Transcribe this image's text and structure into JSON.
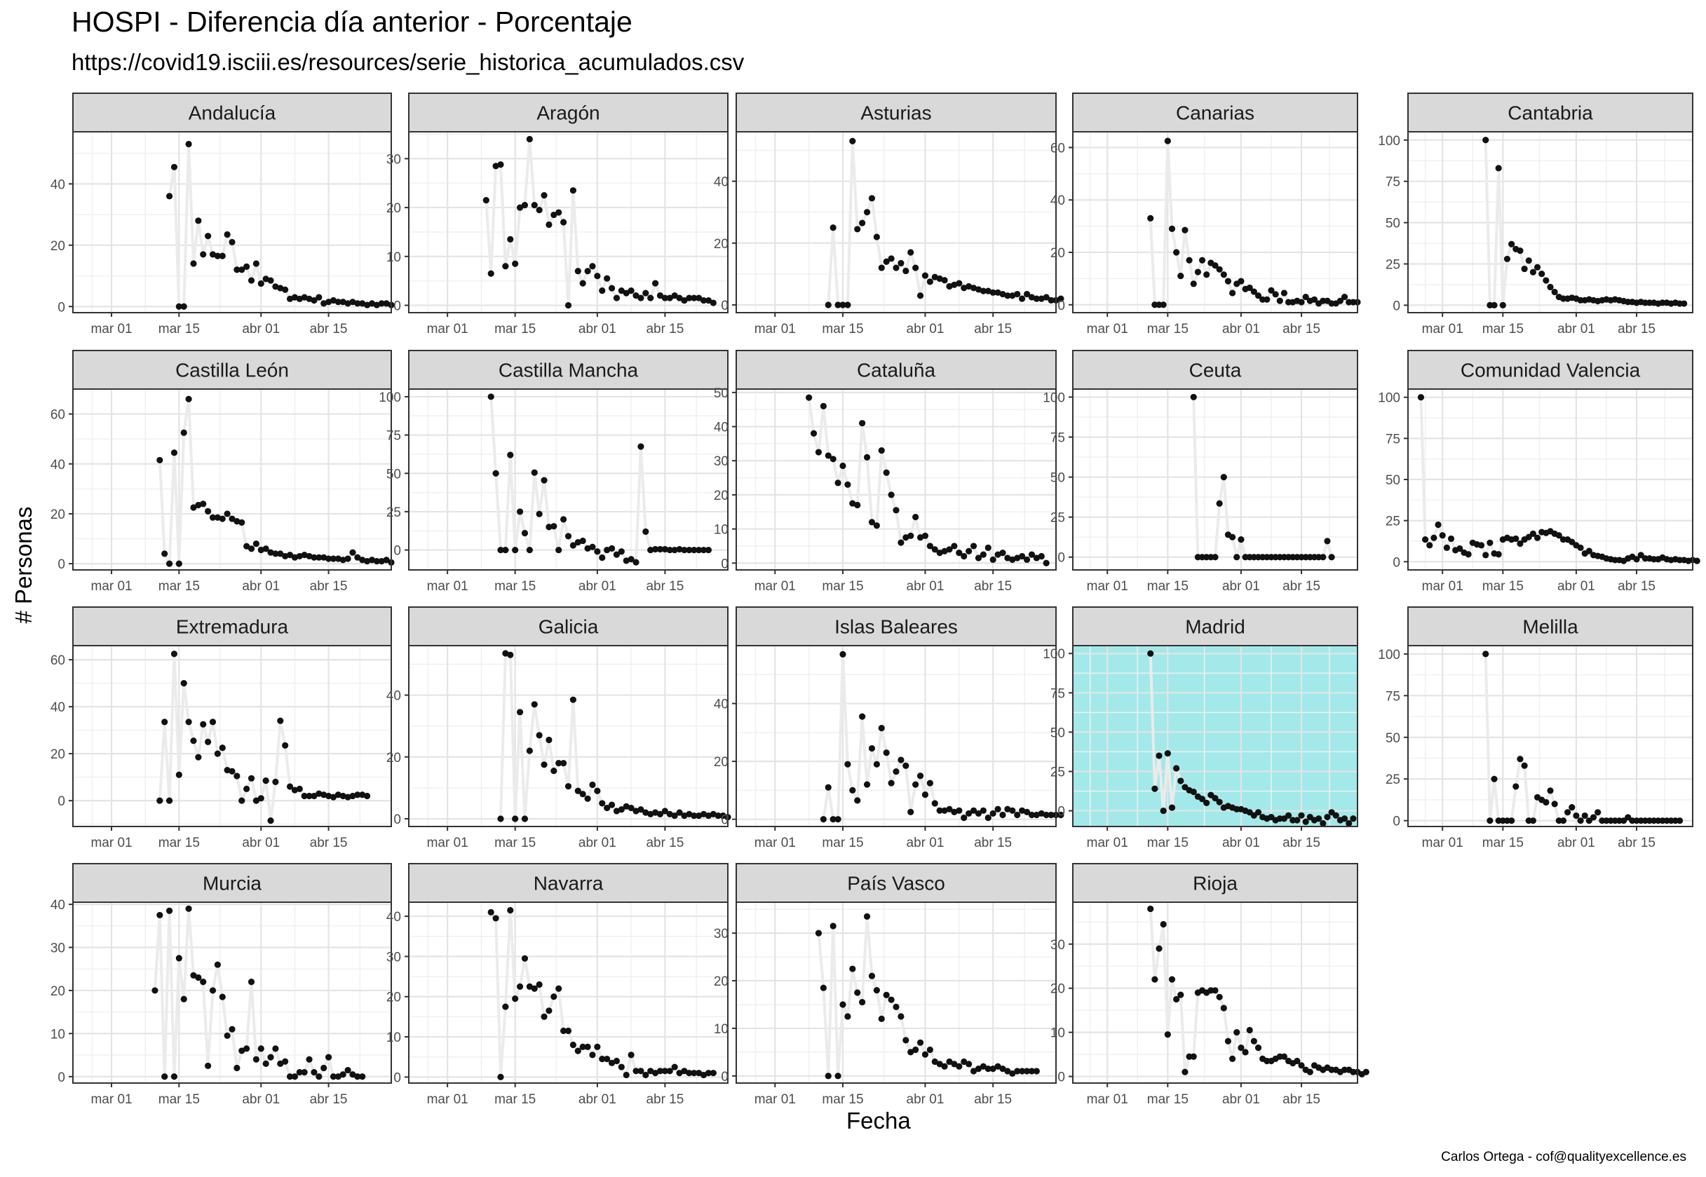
{
  "title": "HOSPI - Diferencia día anterior - Porcentaje",
  "subtitle": "https://covid19.isciii.es/resources/serie_historica_acumulados.csv",
  "caption": "Carlos Ortega - cof@qualityexcellence.es",
  "chart_data": {
    "type": "scatter",
    "xlabel": "Fecha",
    "ylabel": "# Personas",
    "x_axis": {
      "start": "2020-02-22",
      "end": "2020-04-28",
      "ticks": [
        {
          "date": "2020-03-01",
          "label": "mar 01"
        },
        {
          "date": "2020-03-15",
          "label": "mar 15"
        },
        {
          "date": "2020-04-01",
          "label": "abr 01"
        },
        {
          "date": "2020-04-15",
          "label": "abr 15"
        }
      ]
    },
    "highlight_color": "#a3e9e9",
    "line_color": "#ebebeb",
    "point_color": "#111111",
    "panels": [
      {
        "name": "Andalucía",
        "ylim": [
          -2,
          57
        ],
        "yticks": [
          0,
          20,
          40
        ],
        "highlight": false,
        "start": "2020-03-13",
        "values": [
          36,
          45.5,
          0,
          0,
          53,
          14,
          28,
          17,
          23,
          17,
          16.5,
          16.5,
          23.5,
          21,
          12,
          12,
          13,
          8.5,
          14,
          7.5,
          9,
          8.5,
          6.5,
          6,
          5.5,
          2.5,
          3,
          2.5,
          3,
          2.5,
          2,
          3,
          1,
          1.5,
          2,
          1.5,
          1.5,
          1,
          1.5,
          1,
          1,
          0.5,
          1,
          0.5,
          1,
          1,
          0.5
        ]
      },
      {
        "name": "Aragón",
        "ylim": [
          -1.5,
          35.5
        ],
        "yticks": [
          0,
          10,
          20,
          30
        ],
        "highlight": false,
        "start": "2020-03-09",
        "values": [
          21.5,
          6.5,
          28.5,
          28.8,
          8,
          13.5,
          8.5,
          20,
          20.5,
          34,
          20.5,
          19.5,
          22.5,
          16.5,
          18.5,
          19,
          17,
          0,
          23.5,
          7,
          4.5,
          7,
          8,
          6,
          3,
          5.5,
          3.5,
          1.5,
          3,
          2.5,
          3,
          2,
          1.5,
          2.5,
          1.5,
          4.5,
          2,
          1.5,
          1.5,
          2,
          1.5,
          1,
          1.5,
          1.5,
          1.5,
          1,
          1,
          0.5
        ]
      },
      {
        "name": "Asturias",
        "ylim": [
          -2.5,
          56
        ],
        "yticks": [
          0,
          20,
          40
        ],
        "highlight": false,
        "start": "2020-03-12",
        "values": [
          0,
          25,
          0,
          0,
          0,
          53,
          24.5,
          26.5,
          30,
          34.5,
          22,
          12,
          14,
          15,
          12,
          13.5,
          11,
          17,
          12,
          3,
          9.5,
          7.5,
          9,
          8.5,
          8,
          6,
          6.5,
          7,
          5.5,
          6,
          5.5,
          5,
          4.5,
          4.5,
          4,
          4,
          3.5,
          3,
          3,
          3.5,
          2,
          3.5,
          2.5,
          2,
          2,
          2.5,
          1.5,
          1.5,
          2
        ]
      },
      {
        "name": "Canarias",
        "ylim": [
          -3,
          66
        ],
        "yticks": [
          0,
          20,
          40,
          60
        ],
        "highlight": false,
        "start": "2020-03-11",
        "values": [
          33,
          0,
          0,
          0,
          62.5,
          29,
          20,
          11,
          28.5,
          17,
          8,
          12.5,
          17,
          11.5,
          16,
          15,
          13.5,
          11.5,
          9,
          4.5,
          8,
          9,
          6,
          6.5,
          5,
          3.5,
          2,
          2,
          5.5,
          4,
          1.5,
          4.5,
          1,
          1,
          1.5,
          1,
          3,
          1.5,
          2,
          0.5,
          1.5,
          1.5,
          0.5,
          0.5,
          1.5,
          3,
          1,
          1,
          1
        ]
      },
      {
        "name": "Cantabria",
        "ylim": [
          -4.5,
          105
        ],
        "yticks": [
          0,
          25,
          50,
          75,
          100
        ],
        "highlight": false,
        "start": "2020-03-11",
        "values": [
          100,
          0,
          0,
          83,
          0,
          28,
          37,
          34,
          33,
          22,
          27,
          20,
          23,
          19,
          15,
          11,
          8,
          5,
          4,
          4,
          4.5,
          4,
          3,
          3,
          3.5,
          3,
          2.5,
          3,
          3.5,
          3,
          3.5,
          3,
          2.5,
          2,
          2,
          1.5,
          2,
          1.5,
          1.5,
          1.5,
          1,
          1.5,
          1.5,
          1,
          1.5,
          1,
          1
        ]
      },
      {
        "name": "Castilla León",
        "ylim": [
          -2.5,
          70
        ],
        "yticks": [
          0,
          20,
          40,
          60
        ],
        "highlight": false,
        "start": "2020-03-11",
        "values": [
          41.5,
          4,
          0,
          44.5,
          0,
          52.5,
          66,
          22.5,
          23.5,
          24,
          21,
          18.5,
          18.5,
          18,
          20,
          18,
          17,
          16.5,
          7,
          6,
          8,
          5.5,
          6,
          4.5,
          4,
          4,
          3,
          3.5,
          2.5,
          3,
          3.5,
          3,
          2.5,
          2.5,
          2.5,
          2,
          2,
          2,
          1.5,
          2,
          4.5,
          2.5,
          1.5,
          1,
          1.5,
          1,
          1,
          1.5,
          0.5
        ]
      },
      {
        "name": "Castilla Mancha",
        "ylim": [
          -13,
          105
        ],
        "yticks": [
          0,
          25,
          50,
          75,
          100
        ],
        "highlight": false,
        "start": "2020-03-10",
        "values": [
          100,
          50,
          0,
          0,
          62,
          0,
          25,
          11,
          0,
          50.5,
          23.5,
          45.5,
          15,
          15.5,
          0,
          20,
          9,
          3,
          5,
          6,
          1,
          2,
          -1,
          -5,
          0,
          1,
          -3,
          -1,
          -7,
          -6,
          -8,
          67.5,
          12,
          0,
          0.5,
          0.5,
          0.5,
          0,
          0,
          0.5,
          0,
          0,
          0,
          0,
          0,
          0
        ]
      },
      {
        "name": "Cataluña",
        "ylim": [
          -2,
          51
        ],
        "yticks": [
          0,
          10,
          20,
          30,
          40,
          50
        ],
        "highlight": false,
        "start": "2020-03-08",
        "values": [
          48.5,
          38,
          32.5,
          46,
          31.5,
          30.5,
          23.5,
          28.5,
          23,
          17.5,
          17,
          41,
          31,
          12,
          11,
          33,
          26.5,
          20,
          15.5,
          6,
          7.5,
          8,
          13.5,
          7.5,
          8,
          5,
          4,
          3,
          3.5,
          4,
          5,
          3,
          2,
          3.5,
          5,
          1.5,
          2.5,
          4.5,
          1,
          2.5,
          3,
          1.5,
          1,
          1.5,
          2,
          1,
          2.5,
          1.5,
          2,
          0
        ]
      },
      {
        "name": "Ceuta",
        "ylim": [
          -8,
          105
        ],
        "yticks": [
          0,
          25,
          50,
          75,
          100
        ],
        "highlight": false,
        "start": "2020-03-21",
        "values": [
          100,
          0,
          0,
          0,
          0,
          0,
          33.5,
          50,
          14,
          12.5,
          0,
          11,
          0,
          0,
          0,
          0,
          0,
          0,
          0,
          0,
          0,
          0,
          0,
          0,
          0,
          0,
          0,
          0,
          0,
          0,
          0,
          10,
          0
        ]
      },
      {
        "name": "Comunidad Valencia",
        "ylim": [
          -5,
          105
        ],
        "yticks": [
          0,
          25,
          50,
          75,
          100
        ],
        "highlight": false,
        "start": "2020-02-25",
        "values": [
          100,
          13.5,
          10,
          14.5,
          22.5,
          16,
          8.5,
          14,
          7,
          8,
          5.5,
          4.5,
          11.5,
          10.5,
          10,
          4,
          11.5,
          5,
          4.5,
          13.5,
          14.5,
          13.5,
          14,
          11,
          13.5,
          15,
          17,
          14.5,
          18,
          17.5,
          18.5,
          17,
          16,
          13.5,
          13.5,
          12,
          10,
          8.5,
          5,
          6.5,
          4,
          3.5,
          3,
          2,
          1.5,
          1,
          1,
          0.5,
          2,
          3,
          1.5,
          4,
          2,
          2,
          1.5,
          1.5,
          2.5,
          1.5,
          1,
          1.5,
          1,
          1,
          0.5,
          1,
          0.5
        ]
      },
      {
        "name": "Extremadura",
        "ylim": [
          -11,
          66
        ],
        "yticks": [
          0,
          20,
          40,
          60
        ],
        "highlight": false,
        "start": "2020-03-11",
        "values": [
          0,
          33.5,
          0,
          62.5,
          11,
          50,
          33.5,
          25.5,
          18.5,
          32.5,
          25,
          33.5,
          20,
          22.5,
          13,
          12.5,
          10.5,
          0,
          5,
          9.5,
          0,
          1,
          8.5,
          -8.5,
          8,
          34,
          23.5,
          6,
          4.5,
          5,
          2,
          2,
          2,
          3,
          2.5,
          2,
          1.5,
          2.5,
          2,
          1.5,
          2,
          2.5,
          2.5,
          2
        ]
      },
      {
        "name": "Galicia",
        "ylim": [
          -2.5,
          56
        ],
        "yticks": [
          0,
          20,
          40
        ],
        "highlight": false,
        "start": "2020-03-12",
        "values": [
          0,
          53.5,
          53,
          0,
          34.5,
          0,
          22,
          37,
          27,
          17.5,
          25.5,
          15.5,
          18,
          18,
          10.5,
          38.5,
          9,
          8,
          6.5,
          11,
          9,
          5,
          3.5,
          4.5,
          2.5,
          3,
          4,
          3.5,
          2.5,
          3,
          2,
          1.5,
          2,
          1.5,
          2.5,
          1.5,
          1,
          2,
          1,
          1.5,
          1,
          1,
          1.5,
          1,
          1.5,
          1,
          1,
          0.5
        ]
      },
      {
        "name": "Islas Baleares",
        "ylim": [
          -2.5,
          60
        ],
        "yticks": [
          0,
          20,
          40
        ],
        "highlight": false,
        "start": "2020-03-11",
        "values": [
          0,
          11,
          0,
          0,
          57,
          19,
          10,
          6.5,
          35.5,
          12,
          24.5,
          19,
          31.5,
          23,
          12.5,
          16.5,
          20.5,
          18.5,
          2.5,
          12,
          15,
          8.5,
          12.5,
          5.5,
          3,
          3,
          3.5,
          2.5,
          3,
          0.5,
          2,
          3,
          2,
          3,
          0.5,
          2,
          3.5,
          1.5,
          3.5,
          3,
          1.5,
          3,
          2.5,
          1.5,
          1.5,
          2,
          1.5,
          1.5,
          1.5,
          1.5
        ]
      },
      {
        "name": "Madrid",
        "ylim": [
          -10,
          105
        ],
        "yticks": [
          0,
          25,
          50,
          75,
          100
        ],
        "highlight": true,
        "start": "2020-03-11",
        "values": [
          100,
          14,
          35,
          0,
          36.5,
          2,
          27,
          19,
          15,
          13,
          12,
          9,
          7.5,
          5,
          10,
          8,
          5.5,
          2,
          3,
          2,
          1,
          1,
          0,
          -1,
          -3,
          -1,
          -4,
          -5,
          -4,
          -6,
          -5,
          -5,
          -3,
          -6,
          -6,
          -3,
          -7,
          -4,
          -6,
          -5,
          -8,
          -4,
          -1,
          -3,
          -6,
          -5,
          -8,
          -5
        ]
      },
      {
        "name": "Melilla",
        "ylim": [
          -3.5,
          105
        ],
        "yticks": [
          0,
          25,
          50,
          75,
          100
        ],
        "highlight": false,
        "start": "2020-03-11",
        "values": [
          100,
          0,
          25,
          0,
          0,
          0,
          0,
          20.5,
          37,
          33,
          0,
          0,
          14,
          12.5,
          11,
          18,
          10,
          0,
          0,
          5,
          8,
          3,
          0,
          3,
          0,
          2,
          5,
          0,
          0,
          0,
          0,
          0,
          0,
          2,
          0,
          0,
          0,
          0,
          0,
          0,
          0,
          0,
          0,
          0,
          0,
          0
        ]
      },
      {
        "name": "Murcia",
        "ylim": [
          -1.5,
          40.5
        ],
        "yticks": [
          0,
          10,
          20,
          30,
          40
        ],
        "highlight": false,
        "start": "2020-03-10",
        "values": [
          20,
          37.5,
          0,
          38.5,
          0,
          27.5,
          18,
          39,
          23.5,
          23,
          22,
          2.5,
          20,
          26,
          18.5,
          9.5,
          11,
          2,
          6,
          6.5,
          22,
          4,
          6.5,
          3,
          4.5,
          6.5,
          3,
          3.5,
          0,
          0,
          1,
          1,
          4,
          1,
          0,
          2,
          4.5,
          0,
          0,
          0.5,
          1.5,
          0.5,
          0,
          0
        ]
      },
      {
        "name": "Navarra",
        "ylim": [
          -1.5,
          43.5
        ],
        "yticks": [
          0,
          10,
          20,
          30,
          40
        ],
        "highlight": false,
        "start": "2020-03-10",
        "values": [
          41,
          39.5,
          0,
          17.5,
          41.5,
          19.5,
          22.5,
          29.5,
          22.5,
          22,
          23,
          15,
          16.5,
          20,
          22,
          11.5,
          11.5,
          8,
          6.5,
          7.5,
          7.5,
          5.5,
          7.5,
          4.5,
          4.5,
          3.5,
          4,
          2.5,
          0.5,
          5.5,
          1.5,
          1.5,
          0.5,
          1.5,
          1,
          1.5,
          1.5,
          1.5,
          2.5,
          1,
          1.5,
          1,
          1,
          1,
          0.5,
          1,
          1
        ]
      },
      {
        "name": "País Vasco",
        "ylim": [
          -1.5,
          36.5
        ],
        "yticks": [
          0,
          10,
          20,
          30
        ],
        "highlight": false,
        "start": "2020-03-10",
        "values": [
          30,
          18.5,
          0,
          31.5,
          0,
          15,
          12.5,
          22.5,
          17.5,
          15.5,
          33.5,
          21,
          18,
          12,
          17,
          16,
          14.5,
          12.5,
          7.5,
          5,
          5.5,
          7,
          4.5,
          5.5,
          3,
          2.5,
          2,
          3,
          2.5,
          2,
          3,
          2.5,
          1,
          1.5,
          2,
          1.5,
          1.5,
          2,
          1.5,
          1,
          0.5,
          1,
          1,
          1,
          1,
          1
        ]
      },
      {
        "name": "Rioja",
        "ylim": [
          -1.5,
          39.5
        ],
        "yticks": [
          0,
          10,
          20,
          30
        ],
        "highlight": false,
        "start": "2020-03-11",
        "values": [
          38,
          22,
          29,
          34.5,
          9.5,
          22,
          17.5,
          18.5,
          1,
          4.5,
          4.5,
          19,
          19.5,
          19,
          19.5,
          19.5,
          18,
          15.5,
          8,
          4,
          10,
          6.5,
          5.5,
          10.5,
          8,
          6.5,
          4,
          3.5,
          3.5,
          4,
          4.5,
          4.5,
          3.5,
          3,
          3.5,
          2.5,
          1.5,
          1,
          2.5,
          2,
          1.5,
          2,
          1.5,
          1.5,
          1,
          1.5,
          1.5,
          1,
          1,
          0.5,
          1
        ]
      }
    ]
  }
}
